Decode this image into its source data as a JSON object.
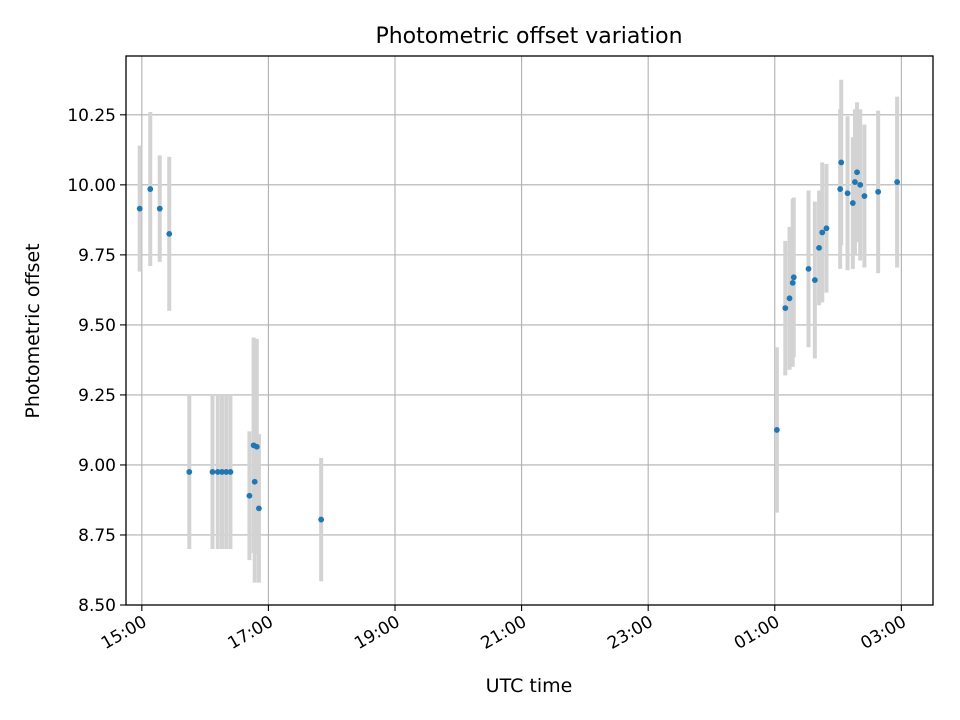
{
  "chart_data": {
    "type": "scatter",
    "title": "Photometric offset variation",
    "xlabel": "UTC time",
    "ylabel": "Photometric offset",
    "x_unit": "UTC date-time",
    "xlim": [
      "14:45",
      "03:30 (+1 day)"
    ],
    "ylim": [
      8.5,
      10.46
    ],
    "grid": true,
    "x_tick_labels": [
      "15:00",
      "17:00",
      "19:00",
      "21:00",
      "23:00",
      "01:00",
      "03:00"
    ],
    "x_tick_values_hours": [
      15,
      17,
      19,
      21,
      23,
      25,
      27
    ],
    "y_ticks": [
      8.5,
      8.75,
      9.0,
      9.25,
      9.5,
      9.75,
      10.0,
      10.25
    ],
    "y_tick_labels": [
      "8.50",
      "8.75",
      "9.00",
      "9.25",
      "9.50",
      "9.75",
      "10.00",
      "10.25"
    ],
    "marker_color": "#1f77b4",
    "errorbar_color": "#d3d3d3",
    "points": [
      {
        "t": "14:58",
        "y": 9.915,
        "err": 0.225
      },
      {
        "t": "15:08",
        "y": 9.985,
        "err": 0.275
      },
      {
        "t": "15:17",
        "y": 9.915,
        "err": 0.19
      },
      {
        "t": "15:26",
        "y": 9.825,
        "err": 0.275
      },
      {
        "t": "15:45",
        "y": 8.975,
        "err": 0.275
      },
      {
        "t": "16:07",
        "y": 8.975,
        "err": 0.275
      },
      {
        "t": "16:12",
        "y": 8.975,
        "err": 0.275
      },
      {
        "t": "16:16",
        "y": 8.975,
        "err": 0.275
      },
      {
        "t": "16:20",
        "y": 8.975,
        "err": 0.275
      },
      {
        "t": "16:24",
        "y": 8.975,
        "err": 0.275
      },
      {
        "t": "16:42",
        "y": 8.89,
        "err": 0.23
      },
      {
        "t": "16:46",
        "y": 9.07,
        "err": 0.385
      },
      {
        "t": "16:47",
        "y": 8.94,
        "err": 0.36
      },
      {
        "t": "16:49",
        "y": 9.065,
        "err": 0.385
      },
      {
        "t": "16:51",
        "y": 8.845,
        "err": 0.265
      },
      {
        "t": "17:50",
        "y": 8.805,
        "err": 0.22
      },
      {
        "t": "01:02",
        "y": 9.125,
        "err": 0.295
      },
      {
        "t": "01:10",
        "y": 9.56,
        "err": 0.24
      },
      {
        "t": "01:14",
        "y": 9.595,
        "err": 0.255
      },
      {
        "t": "01:17",
        "y": 9.65,
        "err": 0.3
      },
      {
        "t": "01:18",
        "y": 9.67,
        "err": 0.285
      },
      {
        "t": "01:32",
        "y": 9.7,
        "err": 0.28
      },
      {
        "t": "01:38",
        "y": 9.66,
        "err": 0.28
      },
      {
        "t": "01:42",
        "y": 9.775,
        "err": 0.205
      },
      {
        "t": "01:45",
        "y": 9.83,
        "err": 0.25
      },
      {
        "t": "01:49",
        "y": 9.845,
        "err": 0.23
      },
      {
        "t": "02:02",
        "y": 9.985,
        "err": 0.285
      },
      {
        "t": "02:03",
        "y": 10.08,
        "err": 0.295
      },
      {
        "t": "02:09",
        "y": 9.97,
        "err": 0.275
      },
      {
        "t": "02:14",
        "y": 9.935,
        "err": 0.235
      },
      {
        "t": "02:16",
        "y": 10.01,
        "err": 0.26
      },
      {
        "t": "02:18",
        "y": 10.045,
        "err": 0.25
      },
      {
        "t": "02:21",
        "y": 10.0,
        "err": 0.27
      },
      {
        "t": "02:25",
        "y": 9.96,
        "err": 0.255
      },
      {
        "t": "02:38",
        "y": 9.975,
        "err": 0.29
      },
      {
        "t": "02:56",
        "y": 10.01,
        "err": 0.305
      }
    ]
  }
}
